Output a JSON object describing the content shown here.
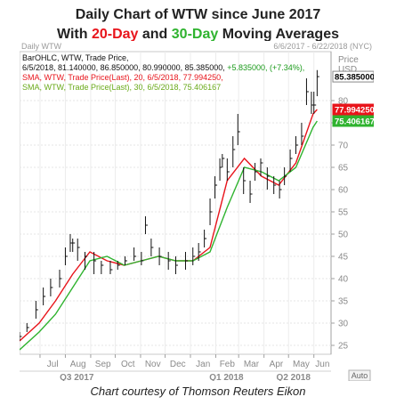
{
  "title": {
    "line1": "Daily Chart of WTW since June 2017",
    "line2_before": "With ",
    "line2_fast": "20-Day",
    "line2_mid": " and ",
    "line2_slow": "30-Day",
    "line2_after": " Moving Averages",
    "fast_color": "#e8141b",
    "slow_color": "#2fb32f"
  },
  "caption": "Chart courtesy of Thomson Reuters Eikon",
  "chart_data": {
    "type": "line",
    "panel_title": "Daily WTW",
    "date_range": "6/6/2017 - 6/22/2018 (NYC)",
    "price_header": "Price",
    "currency": "USD",
    "auto_label": "Auto",
    "legend": [
      {
        "text": "BarOHLC, WTW, Trade Price,",
        "color": "#111111"
      },
      {
        "text": "6/5/2018, 81.140000, 86.850000, 80.990000, 85.385000, +5.835000, (+7.34%),",
        "color": "#111111",
        "change_text": "+5.835000, (+7.34%),",
        "change_color": "#1a9a1a"
      },
      {
        "text": "SMA, WTW, Trade Price(Last), 20, 6/5/2018, 77.994250,",
        "color": "#e8141b"
      },
      {
        "text": "SMA, WTW, Trade Price(Last), 30, 6/5/2018, 75.406167",
        "color": "#6aaa1a"
      }
    ],
    "y_axis": {
      "min": 23,
      "max": 91,
      "ticks": [
        25,
        30,
        35,
        40,
        45,
        50,
        55,
        60,
        65,
        70,
        75,
        80
      ],
      "tick_labels": [
        "25",
        "30",
        "35",
        "40",
        "45",
        "50",
        "55",
        "60",
        "65",
        "70",
        "75",
        "80"
      ]
    },
    "x_axis": {
      "months": [
        "Jul",
        "Aug",
        "Sep",
        "Oct",
        "Nov",
        "Dec",
        "Jan",
        "Feb",
        "Mar",
        "Apr",
        "May",
        "Jun"
      ],
      "month_dates": [
        "2017-07-01",
        "2017-08-01",
        "2017-09-01",
        "2017-10-01",
        "2017-11-01",
        "2017-12-01",
        "2018-01-01",
        "2018-02-01",
        "2018-03-01",
        "2018-04-01",
        "2018-05-01",
        "2018-06-01"
      ],
      "quarters": [
        {
          "label": "Q3 2017",
          "center": "2017-08-15"
        },
        {
          "label": "Q1 2018",
          "center": "2018-02-14"
        },
        {
          "label": "Q2 2018",
          "center": "2018-05-07"
        }
      ],
      "start": "2017-06-06",
      "end": "2018-06-22"
    },
    "price_tags": [
      {
        "label": "85.385000",
        "value": 85.385,
        "bg": "#ffffff",
        "fg": "#000000"
      },
      {
        "label": "77.994250",
        "value": 77.99425,
        "bg": "#e8141b",
        "fg": "#ffffff"
      },
      {
        "label": "75.406167",
        "value": 75.406167,
        "bg": "#2fb32f",
        "fg": "#ffffff"
      }
    ],
    "series": [
      {
        "name": "WTW",
        "kind": "ohlc",
        "color": "#111111",
        "x": [
          "2017-06-06",
          "2017-06-15",
          "2017-06-26",
          "2017-07-05",
          "2017-07-14",
          "2017-07-25",
          "2017-08-01",
          "2017-08-07",
          "2017-08-10",
          "2017-08-16",
          "2017-08-25",
          "2017-09-05",
          "2017-09-14",
          "2017-09-25",
          "2017-10-04",
          "2017-10-13",
          "2017-10-24",
          "2017-11-02",
          "2017-11-07",
          "2017-11-14",
          "2017-11-24",
          "2017-12-05",
          "2017-12-14",
          "2017-12-26",
          "2018-01-04",
          "2018-01-11",
          "2018-01-18",
          "2018-01-25",
          "2018-01-31",
          "2018-02-06",
          "2018-02-09",
          "2018-02-15",
          "2018-02-22",
          "2018-02-28",
          "2018-03-07",
          "2018-03-15",
          "2018-03-21",
          "2018-03-28",
          "2018-04-05",
          "2018-04-13",
          "2018-04-20",
          "2018-04-26",
          "2018-05-03",
          "2018-05-10",
          "2018-05-17",
          "2018-05-23",
          "2018-05-29",
          "2018-06-01",
          "2018-06-05"
        ],
        "close": [
          27,
          29,
          33,
          36,
          38,
          40,
          45,
          48,
          48,
          47,
          45,
          44,
          43,
          42,
          43,
          44,
          45,
          44,
          52,
          47,
          45,
          44,
          43,
          44,
          45,
          46,
          49,
          55,
          61,
          65,
          67,
          64,
          69,
          73,
          62,
          59,
          64,
          66,
          63,
          61,
          60,
          63,
          67,
          70,
          72,
          82,
          79,
          79,
          85.385
        ],
        "high": [
          28,
          30,
          35,
          38,
          40,
          42,
          47,
          50,
          49,
          49,
          46,
          46,
          44,
          44,
          44,
          45,
          47,
          46,
          54,
          49,
          47,
          46,
          45,
          46,
          47,
          48,
          51,
          58,
          63,
          67,
          68,
          67,
          72,
          77,
          65,
          62,
          66,
          67,
          65,
          63,
          62,
          65,
          69,
          72,
          75,
          85,
          82,
          82,
          86.85
        ],
        "low": [
          26,
          28,
          31,
          34,
          36,
          38,
          43,
          46,
          46,
          44,
          42,
          41,
          41,
          41,
          42,
          43,
          44,
          43,
          50,
          45,
          43,
          42,
          41,
          42,
          43,
          44,
          47,
          52,
          58,
          62,
          65,
          62,
          65,
          70,
          59,
          57,
          62,
          63,
          60,
          59,
          58,
          61,
          64,
          68,
          70,
          79,
          77,
          77,
          80.99
        ]
      },
      {
        "name": "SMA 20",
        "kind": "line",
        "color": "#e8141b",
        "x": [
          "2017-06-06",
          "2017-06-30",
          "2017-07-20",
          "2017-08-10",
          "2017-08-31",
          "2017-09-21",
          "2017-10-12",
          "2017-11-02",
          "2017-11-23",
          "2017-12-14",
          "2018-01-04",
          "2018-01-25",
          "2018-02-15",
          "2018-03-08",
          "2018-03-29",
          "2018-04-19",
          "2018-05-10",
          "2018-05-31",
          "2018-06-05"
        ],
        "values": [
          26,
          30,
          35,
          41,
          46,
          44,
          43,
          44,
          45,
          44,
          44,
          47,
          62,
          67,
          63,
          61,
          66,
          77,
          77.99425
        ]
      },
      {
        "name": "SMA 30",
        "kind": "line",
        "color": "#2fb32f",
        "x": [
          "2017-06-06",
          "2017-06-30",
          "2017-07-20",
          "2017-08-10",
          "2017-08-31",
          "2017-09-21",
          "2017-10-12",
          "2017-11-02",
          "2017-11-23",
          "2017-12-14",
          "2018-01-04",
          "2018-01-25",
          "2018-02-15",
          "2018-03-08",
          "2018-03-29",
          "2018-04-19",
          "2018-05-10",
          "2018-05-31",
          "2018-06-05"
        ],
        "values": [
          24,
          28,
          32,
          38,
          44,
          45,
          43,
          44,
          45,
          44,
          44,
          46,
          56,
          65,
          64,
          62,
          65,
          74,
          75.406167
        ]
      }
    ]
  }
}
